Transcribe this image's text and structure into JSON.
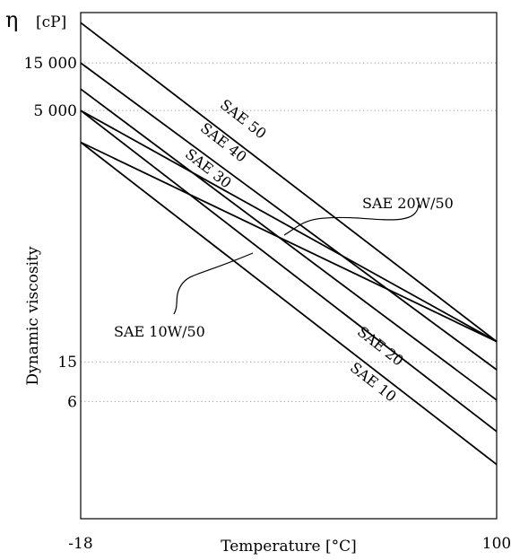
{
  "chart_data": {
    "type": "line",
    "ylabel_symbol": "η",
    "ylabel_unit": "[cP]",
    "ylabel": "Dynamic viscosity",
    "xlabel": "Temperature [°C]",
    "x_tick_labels": [
      "-18",
      "100"
    ],
    "x_range": [
      -18,
      100
    ],
    "y_scale": "log",
    "y_ticks": [
      {
        "value": 15000,
        "label": "15 000"
      },
      {
        "value": 5000,
        "label": "5 000"
      },
      {
        "value": 15,
        "label": "15"
      },
      {
        "value": 6,
        "label": "6"
      }
    ],
    "ylim": [
      0.4,
      48000
    ],
    "grid": "horizontal-dotted",
    "series": [
      {
        "name": "SAE 50",
        "x": [
          -18,
          100
        ],
        "y": [
          38000,
          24
        ]
      },
      {
        "name": "SAE 40",
        "x": [
          -18,
          100
        ],
        "y": [
          15000,
          12.5
        ]
      },
      {
        "name": "SAE 30",
        "x": [
          -18,
          100
        ],
        "y": [
          8200,
          6.2
        ]
      },
      {
        "name": "SAE 20",
        "x": [
          -18,
          100
        ],
        "y": [
          5000,
          3
        ]
      },
      {
        "name": "SAE 10",
        "x": [
          -18,
          100
        ],
        "y": [
          2400,
          1.4
        ]
      },
      {
        "name": "SAE 20W/50",
        "x": [
          -18,
          100
        ],
        "y": [
          5000,
          24
        ]
      },
      {
        "name": "SAE 10W/50",
        "x": [
          -18,
          100
        ],
        "y": [
          2400,
          24
        ]
      }
    ]
  }
}
